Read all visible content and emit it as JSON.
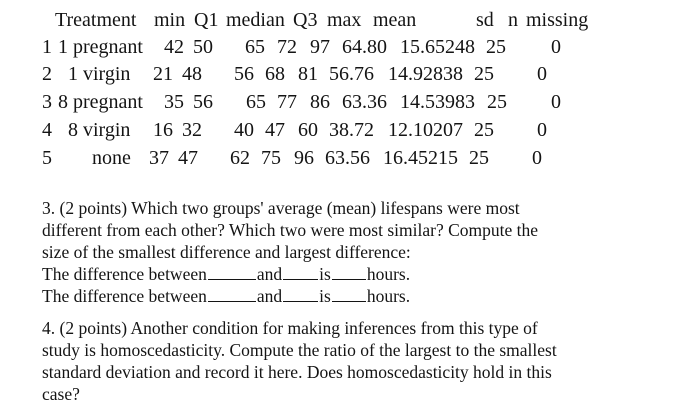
{
  "table": {
    "header": [
      "Treatment",
      "min",
      "Q1",
      "median",
      "Q3",
      "max",
      "mean",
      "sd",
      "n",
      "missing"
    ],
    "rows": [
      {
        "index": "1",
        "treatment": "1 pregnant",
        "min": "42",
        "q1": "50",
        "median": "65",
        "q3": "72",
        "max": "97",
        "mean": "64.80",
        "sd": "15.65248",
        "n": "25",
        "missing": "0"
      },
      {
        "index": "2",
        "treatment": "1 virgin",
        "min": "21",
        "q1": "48",
        "median": "56",
        "q3": "68",
        "max": "81",
        "mean": "56.76",
        "sd": "14.92838",
        "n": "25",
        "missing": "0"
      },
      {
        "index": "3",
        "treatment": "8 pregnant",
        "min": "35",
        "q1": "56",
        "median": "65",
        "q3": "77",
        "max": "86",
        "mean": "63.36",
        "sd": "14.53983",
        "n": "25",
        "missing": "0"
      },
      {
        "index": "4",
        "treatment": "8 virgin",
        "min": "16",
        "q1": "32",
        "median": "40",
        "q3": "47",
        "max": "60",
        "mean": "38.72",
        "sd": "12.10207",
        "n": "25",
        "missing": "0"
      },
      {
        "index": "5",
        "treatment": "none",
        "min": "37",
        "q1": "47",
        "median": "62",
        "q3": "75",
        "max": "96",
        "mean": "63.56",
        "sd": "16.45215",
        "n": "25",
        "missing": "0"
      }
    ]
  },
  "question3": {
    "lines": [
      "3. (2 points) Which two groups' average (mean) lifespans were most",
      "different from each other? Which two were most similar? Compute the",
      "size of the smallest difference and largest difference:"
    ],
    "fill_in": {
      "prefix": "The difference between",
      "and": "and",
      "is": "is",
      "suffix": "hours."
    }
  },
  "question4": {
    "lines": [
      "4. (2 points) Another condition for making inferences from this type of",
      "study is homoscedasticity. Compute the ratio of the largest to the smallest",
      "standard deviation and record it here. Does homoscedasticity hold in this",
      "case?"
    ]
  }
}
